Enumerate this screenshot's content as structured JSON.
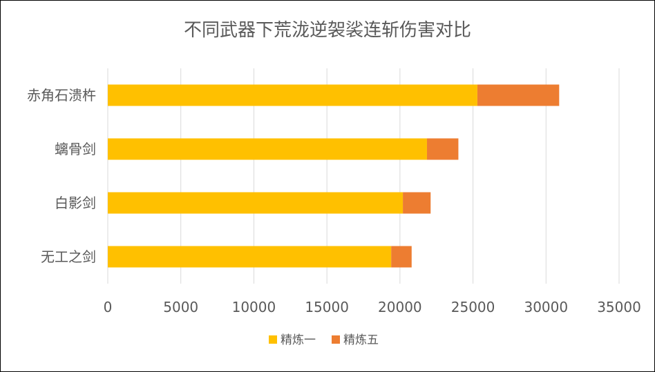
{
  "chart_data": {
    "type": "bar",
    "orientation": "horizontal",
    "stacked": true,
    "title": "不同武器下荒泷逆袈裟连斩伤害对比",
    "categories": [
      "赤角石溃杵",
      "螭骨剑",
      "白影剑",
      "无工之剑"
    ],
    "series": [
      {
        "name": "精炼一",
        "values": [
          25300,
          21850,
          20200,
          19400
        ],
        "color": "#FFC000"
      },
      {
        "name": "精炼五",
        "values": [
          5600,
          2150,
          1900,
          1400
        ],
        "color": "#ED7D31"
      }
    ],
    "xlim": [
      0,
      35000
    ],
    "xticks": [
      "0",
      "5000",
      "10000",
      "15000",
      "20000",
      "25000",
      "30000",
      "35000"
    ],
    "grid": true,
    "legend_position": "bottom"
  }
}
